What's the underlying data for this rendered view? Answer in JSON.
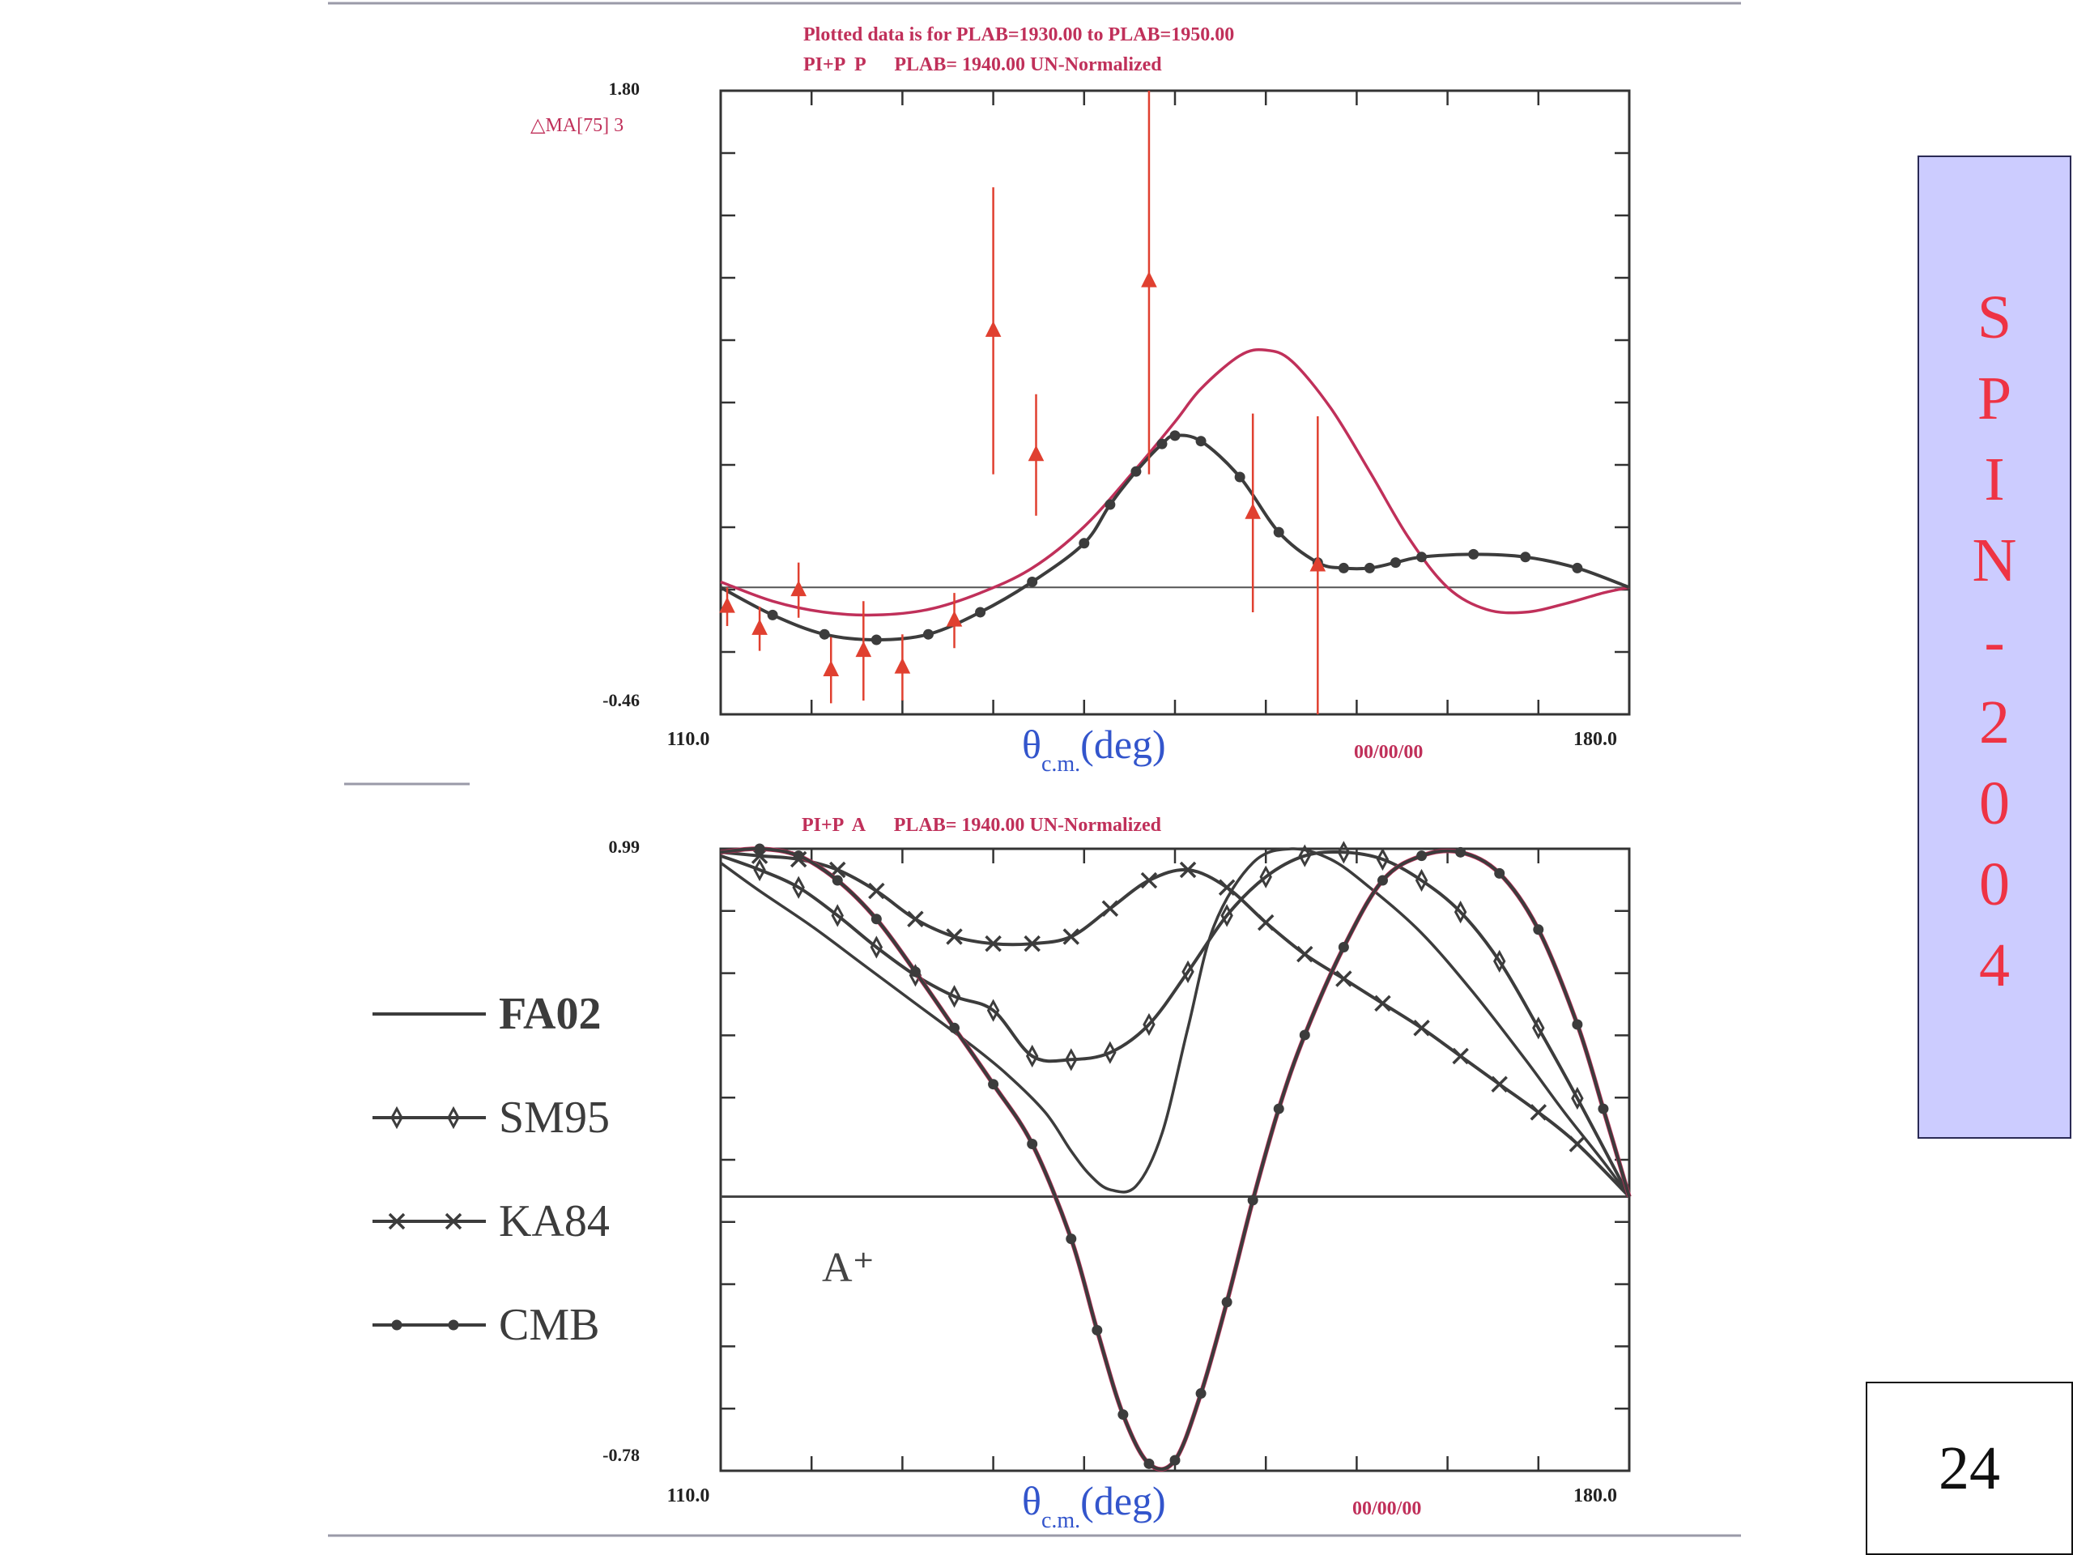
{
  "page_number": "24",
  "side_banner": {
    "letters": [
      "S",
      "P",
      "I",
      "N",
      "-",
      "2",
      "0",
      "0",
      "4"
    ],
    "background": "#ccccff",
    "text_color": "#ee3344"
  },
  "colors": {
    "curve_red": "#c0305a",
    "curve_dark": "#3c3c3c",
    "data_red": "#e04030",
    "axis_blue": "#3355cc",
    "label_red": "#c0305a"
  },
  "chart_data": [
    {
      "type": "line",
      "header": [
        "Plotted data is for PLAB=1930.00 to PLAB=1950.00",
        "PI+P  P      PLAB= 1940.00 UN-Normalized"
      ],
      "ylabel_series": "MA[75] 3",
      "ytick_top": "1.80",
      "ytick_bottom": "-0.46",
      "xtick_left": "110.0",
      "xtick_right": "180.0",
      "xlabel_main": "θ",
      "xlabel_sub": "c.m.",
      "xlabel_unit": "(deg)",
      "date": "00/00/00",
      "xlim": [
        110,
        180
      ],
      "ylim": [
        -0.46,
        1.8
      ],
      "reference_line": 0,
      "series": [
        {
          "style": "plain",
          "color": "red",
          "x": [
            110,
            114,
            118,
            122,
            126,
            130,
            134,
            138,
            142,
            145,
            147,
            150,
            152,
            154,
            157,
            160,
            163,
            166,
            169,
            172,
            175,
            178,
            180
          ],
          "y": [
            0.02,
            -0.05,
            -0.09,
            -0.1,
            -0.08,
            -0.02,
            0.07,
            0.22,
            0.43,
            0.6,
            0.72,
            0.84,
            0.86,
            0.82,
            0.65,
            0.42,
            0.18,
            0.0,
            -0.08,
            -0.09,
            -0.06,
            -0.02,
            0.0
          ]
        },
        {
          "style": "dots",
          "color": "dark",
          "x": [
            110,
            114,
            118,
            122,
            126,
            130,
            134,
            138,
            140,
            142,
            144,
            145,
            147,
            150,
            153,
            156,
            158,
            160,
            162,
            164,
            168,
            172,
            176,
            180
          ],
          "y": [
            0.0,
            -0.1,
            -0.17,
            -0.19,
            -0.17,
            -0.09,
            0.02,
            0.16,
            0.3,
            0.42,
            0.52,
            0.55,
            0.53,
            0.4,
            0.2,
            0.09,
            0.07,
            0.07,
            0.09,
            0.11,
            0.12,
            0.11,
            0.07,
            0.0
          ]
        }
      ],
      "points": {
        "x": [
          110.5,
          113,
          116,
          118.5,
          121,
          124,
          128,
          131,
          134.3,
          143,
          151,
          156
        ],
        "y": [
          -0.07,
          -0.15,
          -0.01,
          -0.3,
          -0.23,
          -0.29,
          -0.12,
          0.93,
          0.48,
          1.11,
          0.27,
          0.08
        ],
        "err": [
          0.07,
          0.08,
          0.1,
          0.12,
          0.18,
          0.12,
          0.1,
          0.52,
          0.22,
          0.7,
          0.36,
          0.54
        ]
      }
    },
    {
      "type": "line",
      "header": [
        "PI+P  A      PLAB= 1940.00 UN-Normalized"
      ],
      "ytick_top": "0.99",
      "ytick_bottom": "-0.78",
      "xtick_left": "110.0",
      "xtick_right": "180.0",
      "xlabel_main": "θ",
      "xlabel_sub": "c.m.",
      "xlabel_unit": "(deg)",
      "date": "00/00/00",
      "annotation": "A⁺",
      "xlim": [
        110,
        180
      ],
      "ylim": [
        -0.78,
        0.99
      ],
      "reference_line": 0.0,
      "legend": [
        "FA02",
        "SM95",
        "KA84",
        "CMB"
      ],
      "series": [
        {
          "name": "FA02",
          "style": "plain",
          "color": "dark",
          "x": [
            110,
            113,
            117,
            121,
            125,
            129,
            132,
            135,
            137,
            138.5,
            140,
            142,
            144,
            146,
            148,
            151,
            154,
            157,
            160,
            164,
            168,
            172,
            175,
            178,
            180
          ],
          "y": [
            0.95,
            0.87,
            0.77,
            0.66,
            0.55,
            0.44,
            0.35,
            0.24,
            0.13,
            0.06,
            0.02,
            0.03,
            0.18,
            0.48,
            0.77,
            0.95,
            0.99,
            0.96,
            0.88,
            0.75,
            0.58,
            0.39,
            0.24,
            0.1,
            0.0
          ]
        },
        {
          "name": "SM95",
          "style": "diamond",
          "color": "dark",
          "x": [
            110,
            113,
            116,
            119,
            122,
            125,
            128,
            131,
            134,
            137,
            140,
            143,
            146,
            149,
            152,
            155,
            158,
            161,
            164,
            167,
            170,
            173,
            176,
            180
          ],
          "y": [
            0.97,
            0.93,
            0.88,
            0.8,
            0.71,
            0.63,
            0.57,
            0.53,
            0.4,
            0.39,
            0.41,
            0.49,
            0.64,
            0.8,
            0.91,
            0.97,
            0.98,
            0.96,
            0.9,
            0.81,
            0.67,
            0.48,
            0.28,
            0.0
          ]
        },
        {
          "name": "KA84",
          "style": "cross",
          "color": "dark",
          "x": [
            110,
            113,
            116,
            119,
            122,
            125,
            128,
            131,
            134,
            137,
            140,
            143,
            146,
            149,
            152,
            155,
            158,
            161,
            164,
            167,
            170,
            173,
            176,
            180
          ],
          "y": [
            0.98,
            0.97,
            0.96,
            0.93,
            0.87,
            0.79,
            0.74,
            0.72,
            0.72,
            0.74,
            0.82,
            0.9,
            0.93,
            0.88,
            0.78,
            0.69,
            0.62,
            0.55,
            0.48,
            0.4,
            0.32,
            0.24,
            0.15,
            0.0
          ]
        },
        {
          "name": "CMB",
          "style": "dots",
          "color": "dark",
          "x": [
            110,
            113,
            116,
            119,
            122,
            125,
            128,
            131,
            134,
            137,
            139,
            141,
            143,
            145,
            147,
            149,
            151,
            153,
            155,
            158,
            161,
            164,
            167,
            170,
            173,
            176,
            178,
            180
          ],
          "y": [
            0.98,
            0.99,
            0.97,
            0.9,
            0.79,
            0.64,
            0.48,
            0.32,
            0.15,
            -0.12,
            -0.38,
            -0.62,
            -0.76,
            -0.75,
            -0.56,
            -0.3,
            -0.01,
            0.25,
            0.46,
            0.71,
            0.9,
            0.97,
            0.98,
            0.92,
            0.76,
            0.49,
            0.25,
            0.0
          ]
        }
      ]
    }
  ]
}
